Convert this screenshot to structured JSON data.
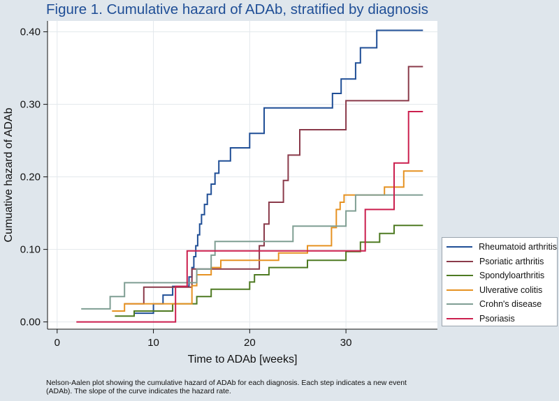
{
  "title": "Figure 1. Cumulative hazard of ADAb, stratified by diagnosis",
  "caption": "Nelson-Aalen plot showing the cumulative hazard of ADAb for each diagnosis. Each step indicates a new event (ADAb). The slope of the curve indicates the hazard rate.",
  "chart_data": {
    "type": "line",
    "step": true,
    "title": "Figure 1. Cumulative hazard of ADAb, stratified by diagnosis",
    "xlabel": "Time to ADAb [weeks]",
    "ylabel": "Cumuative hazard of ADAb",
    "xlim": [
      -1,
      39.5
    ],
    "ylim": [
      -0.01,
      0.415
    ],
    "xticks": [
      0,
      10,
      20,
      30
    ],
    "xtick_labels": [
      "0",
      "10",
      "20",
      "30"
    ],
    "yticks": [
      0,
      0.1,
      0.2,
      0.3,
      0.4
    ],
    "ytick_labels": [
      "0.00",
      "0.10",
      "0.20",
      "0.30",
      "0.40"
    ],
    "grid": true,
    "legend_position": "right",
    "series": [
      {
        "name": "Rheumatoid arthritis",
        "color": "#1f4e96",
        "points": [
          [
            8,
            0.012
          ],
          [
            10,
            0.025
          ],
          [
            11,
            0.037
          ],
          [
            12,
            0.049
          ],
          [
            13.7,
            0.062
          ],
          [
            14.0,
            0.075
          ],
          [
            14.2,
            0.09
          ],
          [
            14.4,
            0.105
          ],
          [
            14.6,
            0.12
          ],
          [
            14.8,
            0.135
          ],
          [
            15.0,
            0.148
          ],
          [
            15.3,
            0.162
          ],
          [
            15.6,
            0.176
          ],
          [
            16.0,
            0.19
          ],
          [
            16.4,
            0.205
          ],
          [
            16.8,
            0.222
          ],
          [
            18,
            0.24
          ],
          [
            20,
            0.26
          ],
          [
            21.5,
            0.295
          ],
          [
            28.6,
            0.315
          ],
          [
            29.5,
            0.335
          ],
          [
            31.0,
            0.357
          ],
          [
            31.5,
            0.378
          ],
          [
            33.2,
            0.402
          ],
          [
            38,
            0.402
          ]
        ]
      },
      {
        "name": "Psoriatic arthritis",
        "color": "#8a3a4a",
        "points": [
          [
            7,
            0.025
          ],
          [
            9,
            0.048
          ],
          [
            14,
            0.073
          ],
          [
            21,
            0.105
          ],
          [
            21.5,
            0.135
          ],
          [
            22,
            0.165
          ],
          [
            23.5,
            0.195
          ],
          [
            24,
            0.23
          ],
          [
            25.2,
            0.265
          ],
          [
            30,
            0.305
          ],
          [
            36.5,
            0.352
          ],
          [
            38,
            0.352
          ]
        ]
      },
      {
        "name": "Spondyloarthritis",
        "color": "#4e7a22",
        "points": [
          [
            6,
            0.008
          ],
          [
            8,
            0.015
          ],
          [
            12,
            0.025
          ],
          [
            14.5,
            0.035
          ],
          [
            16,
            0.045
          ],
          [
            20,
            0.055
          ],
          [
            20.5,
            0.065
          ],
          [
            22,
            0.075
          ],
          [
            26,
            0.085
          ],
          [
            30,
            0.097
          ],
          [
            31.5,
            0.11
          ],
          [
            33.5,
            0.122
          ],
          [
            35,
            0.133
          ],
          [
            38,
            0.133
          ]
        ]
      },
      {
        "name": "Ulverative colitis",
        "color": "#e69222",
        "points": [
          [
            5.7,
            0.015
          ],
          [
            7,
            0.025
          ],
          [
            14,
            0.05
          ],
          [
            14.5,
            0.065
          ],
          [
            16,
            0.075
          ],
          [
            17,
            0.085
          ],
          [
            23,
            0.095
          ],
          [
            26,
            0.105
          ],
          [
            28.5,
            0.13
          ],
          [
            29,
            0.155
          ],
          [
            29.4,
            0.165
          ],
          [
            29.8,
            0.175
          ],
          [
            34,
            0.186
          ],
          [
            36,
            0.208
          ],
          [
            38,
            0.208
          ]
        ]
      },
      {
        "name": "Crohn's disease",
        "color": "#7f9e93",
        "points": [
          [
            2.5,
            0.018
          ],
          [
            5.5,
            0.035
          ],
          [
            7,
            0.054
          ],
          [
            14.5,
            0.073
          ],
          [
            16,
            0.092
          ],
          [
            16.4,
            0.111
          ],
          [
            24.5,
            0.132
          ],
          [
            30,
            0.153
          ],
          [
            31,
            0.175
          ],
          [
            38,
            0.175
          ]
        ]
      },
      {
        "name": "Psoriasis",
        "color": "#cb1f4e",
        "points": [
          [
            2,
            0
          ],
          [
            12.3,
            0.049
          ],
          [
            13.5,
            0.098
          ],
          [
            32,
            0.155
          ],
          [
            35,
            0.219
          ],
          [
            36.5,
            0.29
          ],
          [
            38,
            0.29
          ]
        ]
      }
    ]
  }
}
